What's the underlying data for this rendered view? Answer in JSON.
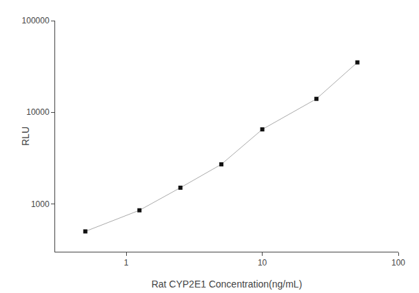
{
  "chart_data": {
    "type": "line",
    "log": true,
    "x": [
      0.5,
      1.25,
      2.5,
      5,
      10,
      25,
      50
    ],
    "series": [
      {
        "type": "line",
        "color": "#aaaaaa",
        "values": [
          500,
          850,
          1500,
          2700,
          6500,
          14000,
          35000
        ]
      },
      {
        "type": "scatter",
        "marker": "square",
        "color": "#111111",
        "values": [
          500,
          850,
          1500,
          2700,
          6500,
          14000,
          35000
        ]
      }
    ],
    "xlabel": "Rat CYP2E1 Concentration(ng/mL)",
    "ylabel": "RLU",
    "xlim": [
      0.3,
      100
    ],
    "ylim": [
      300,
      100000
    ],
    "xticks": [
      1,
      10,
      100
    ],
    "yticks": [
      1000,
      10000,
      100000
    ],
    "grid": false
  }
}
